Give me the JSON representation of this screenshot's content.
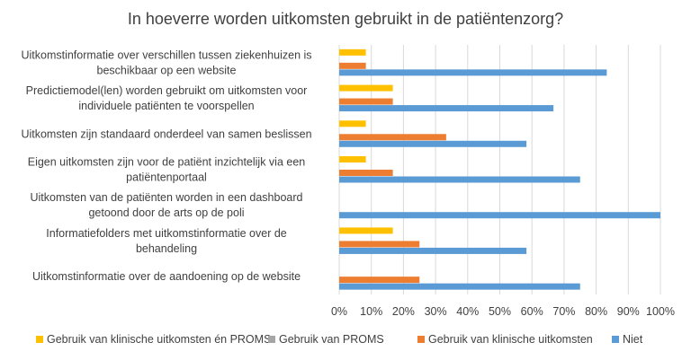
{
  "chart_data": {
    "type": "bar",
    "orientation": "horizontal",
    "title": "In hoeverre worden uitkomsten gebruikt in de patiëntenzorg?",
    "categories": [
      [
        "Uitkomstinformatie over verschillen tussen ziekenhuizen is",
        "beschikbaar op een website"
      ],
      [
        "Predictiemodel(len) worden gebruikt om uitkomsten voor",
        "individuele patiënten te voorspellen"
      ],
      [
        "Uitkomsten zijn standaard onderdeel van samen beslissen"
      ],
      [
        "Eigen uitkomsten zijn voor de patiënt inzichtelijk via een",
        "patiëntenportaal"
      ],
      [
        "Uitkomsten van de patiënten worden in een dashboard",
        "getoond door de arts op de poli"
      ],
      [
        "Informatiefolders met uitkomstinformatie over de",
        "behandeling"
      ],
      [
        "Uitkomstinformatie over de aandoening op de website"
      ]
    ],
    "series": [
      {
        "name": "Gebruik van klinische uitkomsten én PROMS",
        "color": "#FFC000",
        "values": [
          8.3,
          16.7,
          8.3,
          8.3,
          0,
          16.7,
          0
        ]
      },
      {
        "name": "Gebruik van PROMS",
        "color": "#A5A5A5",
        "values": [
          0,
          0,
          0,
          0,
          0,
          0,
          0
        ]
      },
      {
        "name": "Gebruik van klinische uitkomsten",
        "color": "#ED7D31",
        "values": [
          8.3,
          16.7,
          33.3,
          16.7,
          0,
          25,
          25
        ]
      },
      {
        "name": "Niet",
        "color": "#5B9BD5",
        "values": [
          83.3,
          66.7,
          58.3,
          75,
          100,
          58.3,
          75
        ]
      }
    ],
    "xlim": [
      0,
      100
    ],
    "xticks": [
      "0%",
      "10%",
      "20%",
      "30%",
      "40%",
      "50%",
      "60%",
      "70%",
      "80%",
      "90%",
      "100%"
    ],
    "grid": true,
    "legend": "bottom"
  }
}
